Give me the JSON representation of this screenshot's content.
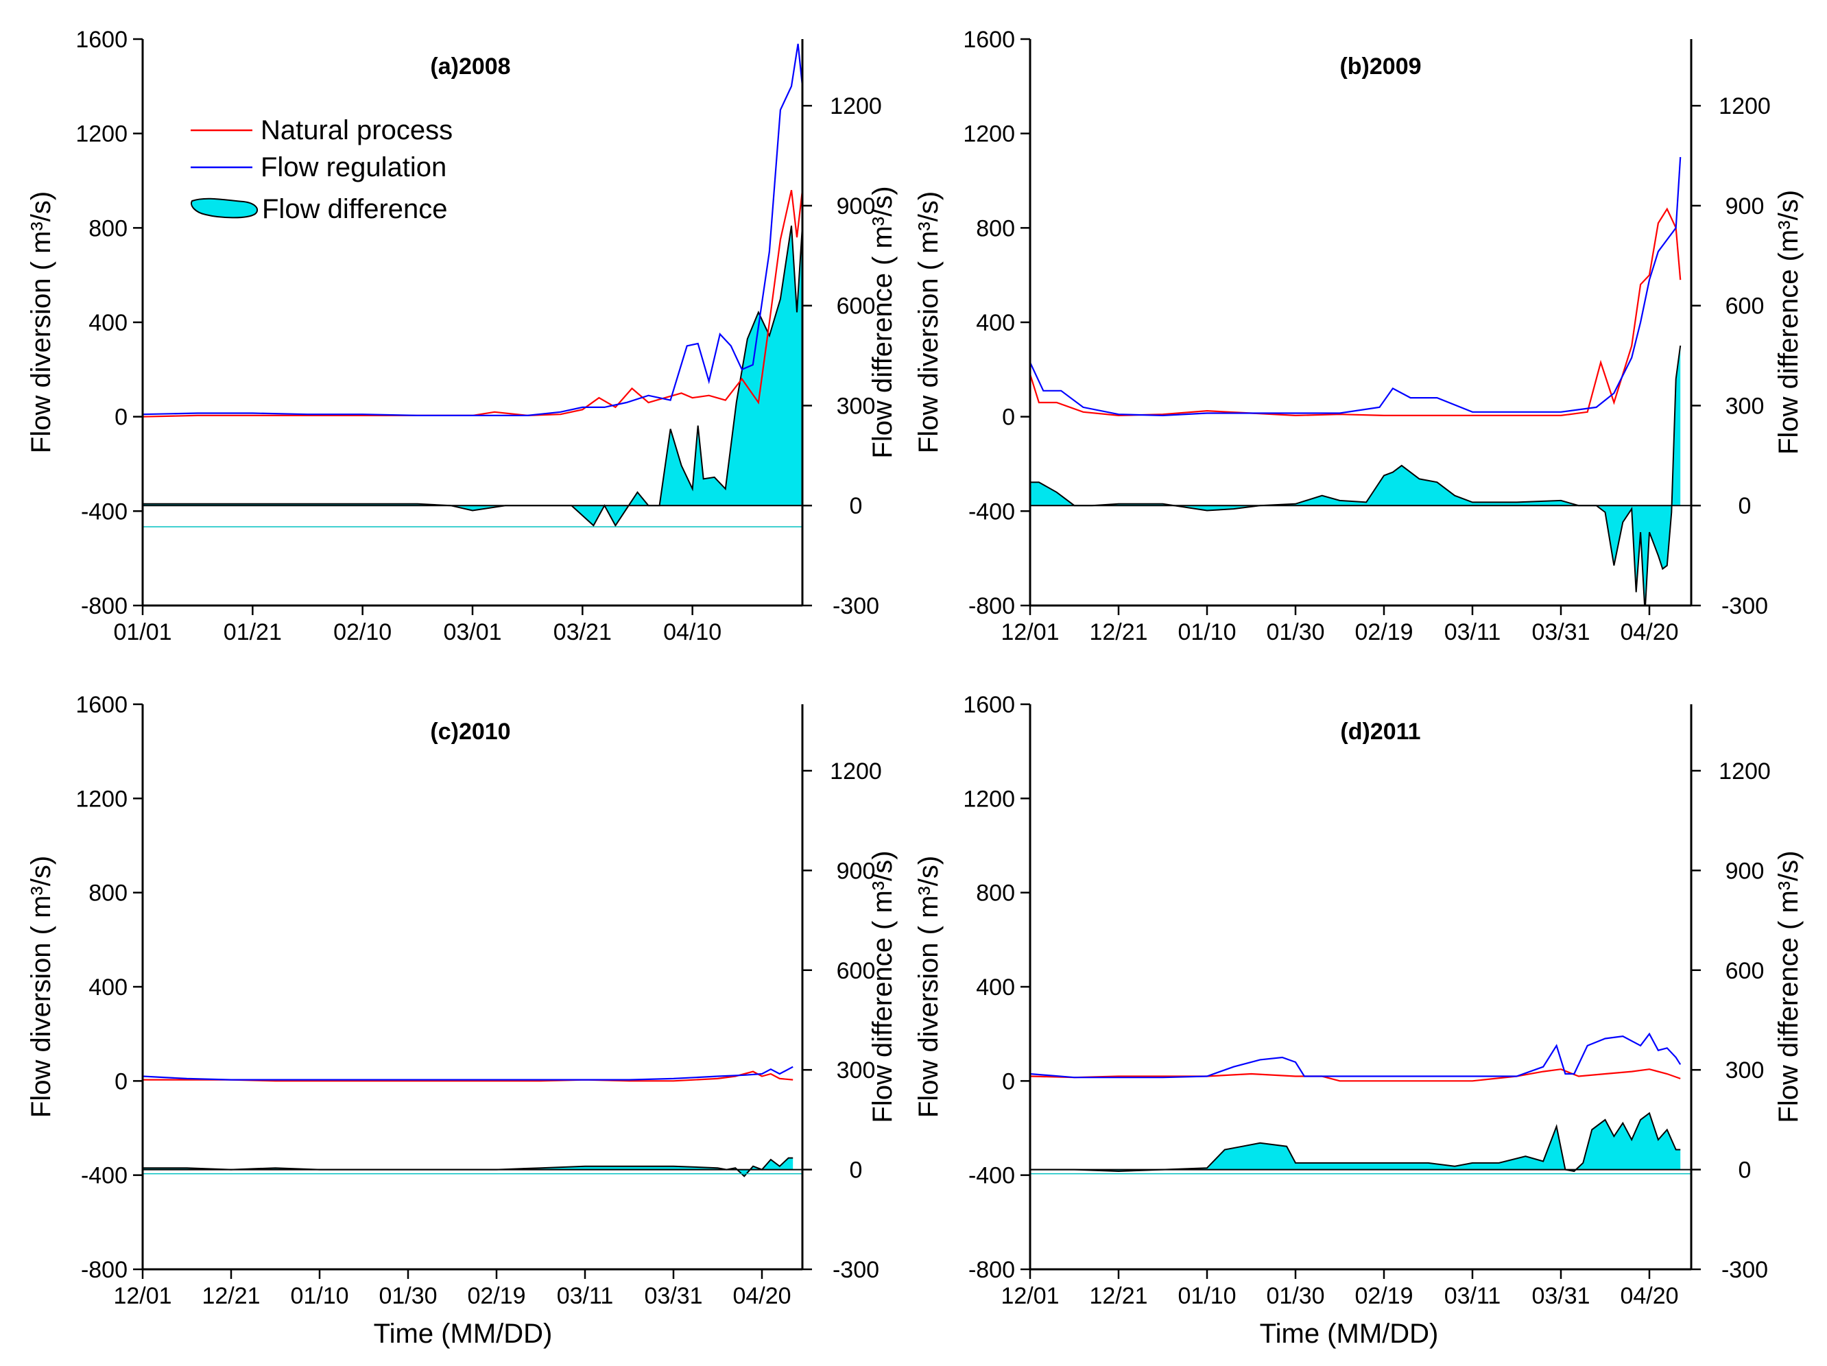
{
  "figure": {
    "xlabel": "Time (MM/DD)",
    "colors": {
      "natural": "#ff0000",
      "regulation": "#0000ff",
      "difference": "#00e5ee",
      "zero_line": "#00c0c0",
      "axis": "#000000"
    },
    "legend": {
      "natural": "Natural process",
      "regulation": "Flow regulation",
      "difference": "Flow difference"
    }
  },
  "chart_data": [
    {
      "id": "a",
      "type": "line+area",
      "title": "(a)2008",
      "ylabel_left": "Flow diversion ( m³/s)",
      "ylabel_right": "Flow difference ( m³/s)",
      "ylim_left": [
        -800,
        1600
      ],
      "yticks_left": [
        "-800",
        "-400",
        "0",
        "400",
        "800",
        "1200",
        "1600"
      ],
      "ylim_right": [
        -300,
        1400
      ],
      "yticks_right": [
        "-300",
        "0",
        "300",
        "600",
        "900",
        "1200"
      ],
      "x_ticks": [
        "01/01",
        "01/21",
        "02/10",
        "03/01",
        "03/21",
        "04/10"
      ],
      "x_tick_index": [
        0,
        1,
        2,
        3,
        4,
        5
      ],
      "x_range_ticks": [
        0,
        6.0
      ],
      "natural_x": [
        0,
        0.5,
        1.0,
        1.5,
        2.0,
        2.5,
        3.0,
        3.2,
        3.5,
        3.8,
        4.0,
        4.15,
        4.3,
        4.45,
        4.6,
        4.75,
        4.9,
        5.0,
        5.15,
        5.3,
        5.45,
        5.6,
        5.7,
        5.8,
        5.9,
        5.95,
        6.0
      ],
      "natural_y": [
        0,
        5,
        5,
        5,
        5,
        5,
        5,
        20,
        5,
        10,
        30,
        80,
        40,
        120,
        60,
        80,
        100,
        80,
        90,
        70,
        160,
        60,
        400,
        750,
        960,
        760,
        960
      ],
      "regulation_x": [
        0,
        0.5,
        1.0,
        1.5,
        2.0,
        2.5,
        3.0,
        3.5,
        3.8,
        4.0,
        4.2,
        4.4,
        4.6,
        4.8,
        4.95,
        5.05,
        5.15,
        5.25,
        5.35,
        5.45,
        5.55,
        5.7,
        5.8,
        5.9,
        5.96,
        6.0
      ],
      "regulation_y": [
        10,
        15,
        15,
        10,
        10,
        5,
        5,
        5,
        20,
        40,
        40,
        60,
        90,
        70,
        300,
        310,
        150,
        350,
        300,
        200,
        220,
        700,
        1300,
        1400,
        1580,
        1400
      ],
      "difference_x": [
        0,
        0.5,
        1.0,
        1.5,
        2.0,
        2.5,
        2.8,
        3.0,
        3.3,
        3.6,
        3.9,
        4.1,
        4.2,
        4.3,
        4.4,
        4.5,
        4.6,
        4.7,
        4.8,
        4.9,
        5.0,
        5.05,
        5.1,
        5.2,
        5.3,
        5.4,
        5.5,
        5.6,
        5.7,
        5.8,
        5.9,
        5.95,
        6.0
      ],
      "difference_y": [
        5,
        5,
        5,
        5,
        5,
        5,
        0,
        -15,
        0,
        0,
        0,
        -60,
        0,
        -60,
        -10,
        40,
        0,
        0,
        230,
        120,
        50,
        240,
        80,
        85,
        50,
        310,
        500,
        580,
        510,
        620,
        840,
        580,
        840
      ]
    },
    {
      "id": "b",
      "type": "line+area",
      "title": "(b)2009",
      "ylabel_left": "Flow diversion ( m³/s)",
      "ylabel_right": "Flow difference (m³/s)",
      "ylim_left": [
        -800,
        1600
      ],
      "yticks_left": [
        "-800",
        "-400",
        "0",
        "400",
        "800",
        "1200",
        "1600"
      ],
      "ylim_right": [
        -300,
        1400
      ],
      "yticks_right": [
        "-300",
        "0",
        "300",
        "600",
        "900",
        "1200"
      ],
      "x_ticks": [
        "12/01",
        "12/21",
        "01/10",
        "01/30",
        "02/19",
        "03/11",
        "03/31",
        "04/20"
      ],
      "x_tick_index": [
        0,
        1,
        2,
        3,
        4,
        5,
        6,
        7
      ],
      "x_range_ticks": [
        0,
        7.35
      ],
      "natural_x": [
        0,
        0.1,
        0.3,
        0.6,
        1.0,
        1.5,
        2.0,
        2.5,
        3.0,
        3.5,
        4.0,
        4.5,
        5.0,
        5.5,
        6.0,
        6.3,
        6.45,
        6.6,
        6.8,
        6.9,
        7.0,
        7.1,
        7.2,
        7.3,
        7.35
      ],
      "natural_y": [
        180,
        60,
        60,
        20,
        5,
        10,
        25,
        15,
        5,
        10,
        5,
        5,
        5,
        5,
        5,
        20,
        230,
        60,
        300,
        560,
        600,
        820,
        880,
        800,
        580
      ],
      "regulation_x": [
        0,
        0.15,
        0.35,
        0.6,
        1.0,
        1.5,
        2.0,
        2.5,
        3.0,
        3.5,
        3.95,
        4.1,
        4.3,
        4.6,
        5.0,
        5.5,
        6.0,
        6.4,
        6.6,
        6.8,
        6.9,
        7.0,
        7.1,
        7.2,
        7.3,
        7.35
      ],
      "regulation_y": [
        230,
        110,
        110,
        40,
        10,
        5,
        15,
        15,
        15,
        15,
        40,
        120,
        80,
        80,
        20,
        20,
        20,
        40,
        100,
        250,
        400,
        580,
        700,
        750,
        800,
        1100
      ],
      "difference_x": [
        0,
        0.1,
        0.3,
        0.5,
        0.7,
        1.0,
        1.5,
        2.0,
        2.3,
        2.6,
        3.0,
        3.3,
        3.5,
        3.8,
        4.0,
        4.1,
        4.2,
        4.4,
        4.6,
        4.8,
        5.0,
        5.5,
        6.0,
        6.2,
        6.4,
        6.5,
        6.6,
        6.7,
        6.8,
        6.85,
        6.9,
        6.95,
        7.0,
        7.1,
        7.15,
        7.2,
        7.25,
        7.3,
        7.35
      ],
      "difference_y": [
        70,
        70,
        40,
        0,
        0,
        5,
        5,
        -15,
        -10,
        0,
        5,
        30,
        15,
        10,
        90,
        100,
        120,
        80,
        70,
        30,
        10,
        10,
        15,
        0,
        0,
        -20,
        -180,
        -50,
        -10,
        -260,
        -80,
        -320,
        -80,
        -150,
        -190,
        -180,
        -20,
        380,
        480
      ]
    },
    {
      "id": "c",
      "type": "line+area",
      "title": "(c)2010",
      "ylabel_left": "Flow diversion ( m³/s)",
      "ylabel_right": "Flow difference ( m³/s)",
      "ylim_left": [
        -800,
        1600
      ],
      "yticks_left": [
        "-800",
        "-400",
        "0",
        "400",
        "800",
        "1200",
        "1600"
      ],
      "ylim_right": [
        -300,
        1400
      ],
      "yticks_right": [
        "-300",
        "0",
        "300",
        "600",
        "900",
        "1200"
      ],
      "x_ticks": [
        "12/01",
        "12/21",
        "01/10",
        "01/30",
        "02/19",
        "03/11",
        "03/31",
        "04/20"
      ],
      "x_tick_index": [
        0,
        1,
        2,
        3,
        4,
        5,
        6,
        7
      ],
      "x_range_ticks": [
        0,
        7.35
      ],
      "natural_x": [
        0,
        0.5,
        1.0,
        1.5,
        2.0,
        2.5,
        3.0,
        3.5,
        4.0,
        4.5,
        5.0,
        5.5,
        6.0,
        6.5,
        6.7,
        6.9,
        7.0,
        7.1,
        7.2,
        7.35
      ],
      "natural_y": [
        5,
        5,
        5,
        0,
        0,
        0,
        0,
        0,
        0,
        0,
        5,
        0,
        0,
        10,
        20,
        40,
        20,
        30,
        10,
        5
      ],
      "regulation_x": [
        0,
        0.5,
        1.0,
        1.5,
        2.0,
        2.5,
        3.0,
        3.5,
        4.0,
        4.5,
        5.0,
        5.5,
        6.0,
        6.5,
        6.8,
        7.0,
        7.1,
        7.2,
        7.35
      ],
      "regulation_y": [
        20,
        10,
        5,
        5,
        5,
        5,
        5,
        5,
        5,
        5,
        5,
        5,
        10,
        20,
        25,
        30,
        50,
        30,
        60
      ],
      "difference_x": [
        0,
        0.5,
        1.0,
        1.5,
        2.0,
        2.5,
        3.0,
        3.5,
        4.0,
        4.5,
        5.0,
        5.5,
        6.0,
        6.5,
        6.6,
        6.7,
        6.8,
        6.9,
        7.0,
        7.1,
        7.2,
        7.3,
        7.35
      ],
      "difference_y": [
        5,
        5,
        0,
        5,
        0,
        0,
        0,
        0,
        0,
        5,
        10,
        10,
        10,
        5,
        0,
        5,
        -20,
        10,
        0,
        30,
        10,
        35,
        35
      ]
    },
    {
      "id": "d",
      "type": "line+area",
      "title": "(d)2011",
      "ylabel_left": "Flow diversion ( m³/s)",
      "ylabel_right": "Flow difference ( m³/s)",
      "ylim_left": [
        -800,
        1600
      ],
      "yticks_left": [
        "-800",
        "-400",
        "0",
        "400",
        "800",
        "1200",
        "1600"
      ],
      "ylim_right": [
        -300,
        1400
      ],
      "yticks_right": [
        "-300",
        "0",
        "300",
        "600",
        "900",
        "1200"
      ],
      "x_ticks": [
        "12/01",
        "12/21",
        "01/10",
        "01/30",
        "02/19",
        "03/11",
        "03/31",
        "04/20"
      ],
      "x_tick_index": [
        0,
        1,
        2,
        3,
        4,
        5,
        6,
        7
      ],
      "x_range_ticks": [
        0,
        7.35
      ],
      "natural_x": [
        0,
        0.5,
        1.0,
        1.5,
        2.0,
        2.5,
        3.0,
        3.3,
        3.5,
        4.0,
        4.5,
        5.0,
        5.5,
        5.8,
        6.0,
        6.2,
        6.5,
        6.8,
        7.0,
        7.2,
        7.35
      ],
      "natural_y": [
        20,
        15,
        20,
        20,
        20,
        30,
        20,
        20,
        0,
        0,
        0,
        0,
        20,
        40,
        50,
        20,
        30,
        40,
        50,
        30,
        10
      ],
      "regulation_x": [
        0,
        0.5,
        1.0,
        1.5,
        2.0,
        2.3,
        2.6,
        2.85,
        3.0,
        3.1,
        3.5,
        4.0,
        4.5,
        5.0,
        5.5,
        5.8,
        5.95,
        6.05,
        6.15,
        6.3,
        6.5,
        6.7,
        6.9,
        7.0,
        7.1,
        7.2,
        7.3,
        7.35
      ],
      "regulation_y": [
        30,
        15,
        15,
        15,
        20,
        60,
        90,
        100,
        80,
        20,
        20,
        20,
        20,
        20,
        20,
        60,
        150,
        30,
        30,
        150,
        180,
        190,
        150,
        200,
        130,
        140,
        100,
        70
      ],
      "difference_x": [
        0,
        0.5,
        1.0,
        1.5,
        2.0,
        2.2,
        2.4,
        2.6,
        2.9,
        3.0,
        3.1,
        3.5,
        4.0,
        4.5,
        4.8,
        5.0,
        5.3,
        5.6,
        5.8,
        5.95,
        6.05,
        6.15,
        6.25,
        6.35,
        6.5,
        6.6,
        6.7,
        6.8,
        6.9,
        7.0,
        7.1,
        7.2,
        7.3,
        7.35
      ],
      "difference_y": [
        0,
        0,
        -5,
        0,
        5,
        60,
        70,
        80,
        70,
        20,
        20,
        20,
        20,
        20,
        10,
        20,
        20,
        40,
        25,
        130,
        0,
        -5,
        20,
        120,
        150,
        100,
        140,
        90,
        150,
        170,
        90,
        120,
        60,
        60
      ]
    }
  ]
}
